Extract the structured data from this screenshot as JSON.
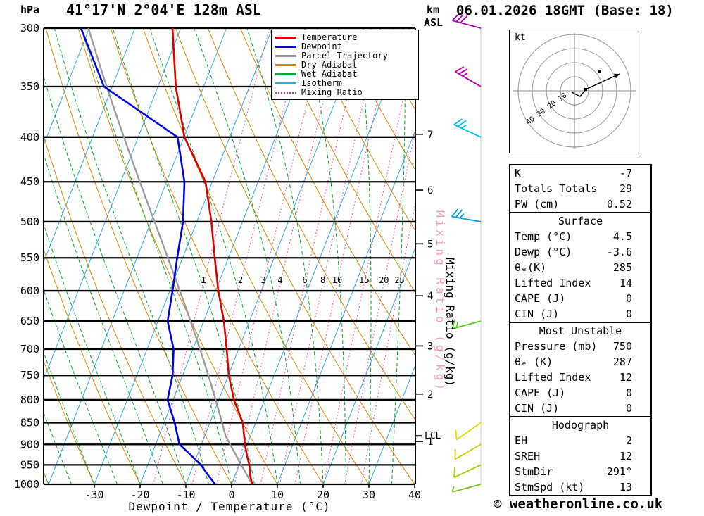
{
  "header": {
    "pressure_unit": "hPa",
    "station_title": "41°17'N 2°04'E 128m ASL",
    "altitude_unit_top": "km",
    "altitude_unit_bottom": "ASL",
    "datetime": "06.01.2026 18GMT (Base: 18)"
  },
  "axes": {
    "pressure_ticks": [
      300,
      350,
      400,
      450,
      500,
      550,
      600,
      650,
      700,
      750,
      800,
      850,
      900,
      950,
      1000
    ],
    "temp_ticks": [
      -30,
      -20,
      -10,
      0,
      10,
      20,
      30,
      40
    ],
    "xlabel": "Dewpoint / Temperature (°C)",
    "mixing_ratio_label": "Mixing Ratio (g/kg)",
    "km_ticks": [
      {
        "km": 7,
        "pressure": 397
      },
      {
        "km": 6,
        "pressure": 460
      },
      {
        "km": 5,
        "pressure": 530
      },
      {
        "km": 4,
        "pressure": 608
      },
      {
        "km": 3,
        "pressure": 694
      },
      {
        "km": 2,
        "pressure": 788
      },
      {
        "km": 1,
        "pressure": 893
      }
    ],
    "lcl_label": "LCL",
    "lcl_pressure": 880
  },
  "legend": [
    {
      "label": "Temperature",
      "color": "#dd0000",
      "style": "solid"
    },
    {
      "label": "Dewpoint",
      "color": "#0000dd",
      "style": "solid"
    },
    {
      "label": "Parcel Trajectory",
      "color": "#999999",
      "style": "solid"
    },
    {
      "label": "Dry Adiabat",
      "color": "#dd8800",
      "style": "solid"
    },
    {
      "label": "Wet Adiabat",
      "color": "#00aa33",
      "style": "solid"
    },
    {
      "label": "Isotherm",
      "color": "#33aadd",
      "style": "solid"
    },
    {
      "label": "Mixing Ratio",
      "color": "#ee3399",
      "style": "dotted"
    }
  ],
  "chart_data": {
    "type": "skewt-log-p",
    "pressure_range": [
      300,
      1000
    ],
    "temp_axis_range": [
      -40,
      40
    ],
    "isotherm_step": 10,
    "dry_adiabat_step": 10,
    "wet_adiabat_step": 5,
    "mixing_ratio_lines": [
      1,
      2,
      3,
      4,
      6,
      8,
      10,
      15,
      20,
      25
    ],
    "sounding": {
      "pressure": [
        1000,
        975,
        950,
        925,
        900,
        850,
        800,
        750,
        700,
        650,
        600,
        550,
        500,
        450,
        400,
        350,
        300
      ],
      "temperature": [
        4.5,
        3.2,
        2.2,
        0.8,
        -0.5,
        -2.8,
        -6.7,
        -9.9,
        -12.6,
        -15.6,
        -19.4,
        -23.0,
        -26.8,
        -31.5,
        -39.9,
        -46.1,
        -51.8
      ],
      "dewpoint": [
        -3.6,
        -6.0,
        -8.4,
        -11.5,
        -14.8,
        -17.7,
        -21.2,
        -22.2,
        -24.2,
        -27.9,
        -29.4,
        -31.2,
        -33.0,
        -36.1,
        -41.4,
        -61.8,
        -71.8
      ]
    },
    "parcel": {
      "surface_pressure": 1000,
      "surface_temp": 4.5,
      "lcl_pressure": 880
    },
    "wind_barbs": [
      {
        "pressure": 300,
        "speed": 30,
        "direction": 285,
        "color": "#aa00bb"
      },
      {
        "pressure": 350,
        "speed": 25,
        "direction": 300,
        "color": "#bb00bb"
      },
      {
        "pressure": 400,
        "speed": 25,
        "direction": 295,
        "color": "#00bbee"
      },
      {
        "pressure": 500,
        "speed": 25,
        "direction": 280,
        "color": "#0099ee"
      },
      {
        "pressure": 650,
        "speed": 15,
        "direction": 255,
        "color": "#55cc22"
      },
      {
        "pressure": 850,
        "speed": 10,
        "direction": 235,
        "color": "#dddd00"
      },
      {
        "pressure": 900,
        "speed": 10,
        "direction": 240,
        "color": "#cccc00"
      },
      {
        "pressure": 950,
        "speed": 10,
        "direction": 245,
        "color": "#aacc00"
      },
      {
        "pressure": 1000,
        "speed": 5,
        "direction": 255,
        "color": "#77bb22"
      }
    ],
    "colors": {
      "temperature": "#dd0000",
      "dewpoint": "#0000dd",
      "parcel": "#999999",
      "dry_adiabat": "#dd8800",
      "wet_adiabat": "#00aa33",
      "isotherm": "#33aadd",
      "mixing_ratio": "#ee3399"
    }
  },
  "hodograph": {
    "unit_label": "kt",
    "rings": [
      10,
      20,
      30,
      40
    ],
    "trace": [
      [
        -2,
        -1
      ],
      [
        4,
        -4
      ],
      [
        8,
        1
      ],
      [
        32,
        12
      ]
    ],
    "markers": [
      [
        8,
        1
      ],
      [
        18,
        14
      ]
    ]
  },
  "stats": {
    "sections": [
      {
        "header": null,
        "rows": [
          [
            "K",
            "-7"
          ],
          [
            "Totals Totals",
            "29"
          ],
          [
            "PW (cm)",
            "0.52"
          ]
        ]
      },
      {
        "header": "Surface",
        "rows": [
          [
            "Temp (°C)",
            "4.5"
          ],
          [
            "Dewp (°C)",
            "-3.6"
          ],
          [
            "θₑ(K)",
            "285"
          ],
          [
            "Lifted Index",
            "14"
          ],
          [
            "CAPE (J)",
            "0"
          ],
          [
            "CIN (J)",
            "0"
          ]
        ]
      },
      {
        "header": "Most Unstable",
        "rows": [
          [
            "Pressure (mb)",
            "750"
          ],
          [
            "θₑ (K)",
            "287"
          ],
          [
            "Lifted Index",
            "12"
          ],
          [
            "CAPE (J)",
            "0"
          ],
          [
            "CIN (J)",
            "0"
          ]
        ]
      },
      {
        "header": "Hodograph",
        "rows": [
          [
            "EH",
            "2"
          ],
          [
            "SREH",
            "12"
          ],
          [
            "StmDir",
            "291°"
          ],
          [
            "StmSpd (kt)",
            "13"
          ]
        ]
      }
    ]
  },
  "footer": {
    "copyright": "© weatheronline.co.uk"
  }
}
